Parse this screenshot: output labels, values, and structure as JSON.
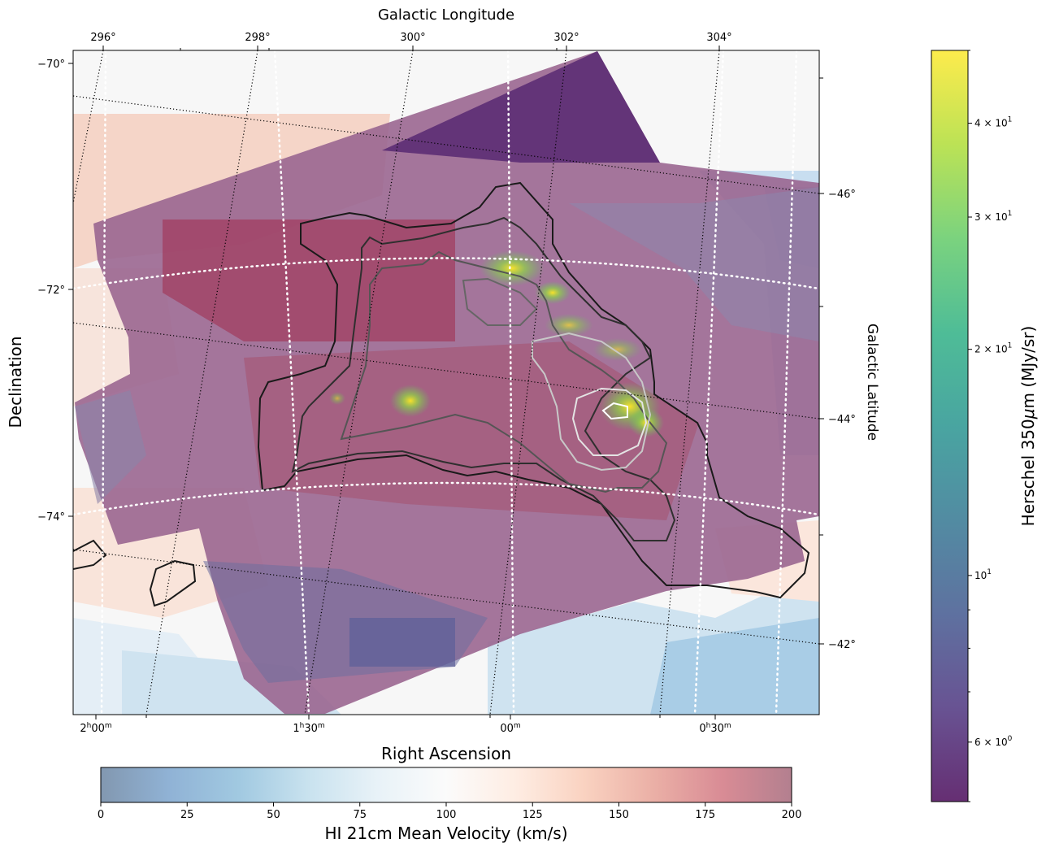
{
  "chart_data": {
    "type": "heatmap",
    "title": "",
    "top_axis_label": "Galactic Longitude",
    "top_ticks": [
      "296°",
      "298°",
      "300°",
      "302°",
      "304°"
    ],
    "right_axis_label": "Galactic Latitude",
    "right_ticks": [
      "−46°",
      "−44°",
      "−42°"
    ],
    "left_axis_label": "Declination",
    "left_ticks": [
      "−70°",
      "−72°",
      "−74°"
    ],
    "bottom_axis_label": "Right Ascension",
    "bottom_ticks": [
      {
        "h": "2",
        "m": "00"
      },
      {
        "h": "1",
        "m": "30"
      },
      {
        "h": "",
        "m": "00"
      },
      {
        "h": "0",
        "m": "30"
      }
    ],
    "colorbar_velocity": {
      "label": "HI 21cm Mean Velocity (km/s)",
      "min": 0,
      "max": 200,
      "ticks": [
        "0",
        "25",
        "50",
        "75",
        "100",
        "125",
        "150",
        "175",
        "200"
      ],
      "colormap": "RdBu_r",
      "alpha": 0.5
    },
    "colorbar_herschel": {
      "label_prefix": "Herschel 350",
      "label_mu": "μ",
      "label_suffix": "m (MJy/sr)",
      "scale": "log",
      "colormap": "viridis",
      "min": 5,
      "max": 50,
      "major_ticks": [
        {
          "base": "6",
          "exp": "0",
          "value": 6
        },
        {
          "base": "10",
          "exp": "1",
          "value": 10
        },
        {
          "base": "2",
          "exp": "1",
          "value": 20
        },
        {
          "base": "3",
          "exp": "1",
          "value": 30
        },
        {
          "base": "4",
          "exp": "1",
          "value": 40
        }
      ],
      "times_sign": "×"
    },
    "grid": "on (dotted galactic + equatorial)",
    "contours": "HI column density, black to white"
  }
}
